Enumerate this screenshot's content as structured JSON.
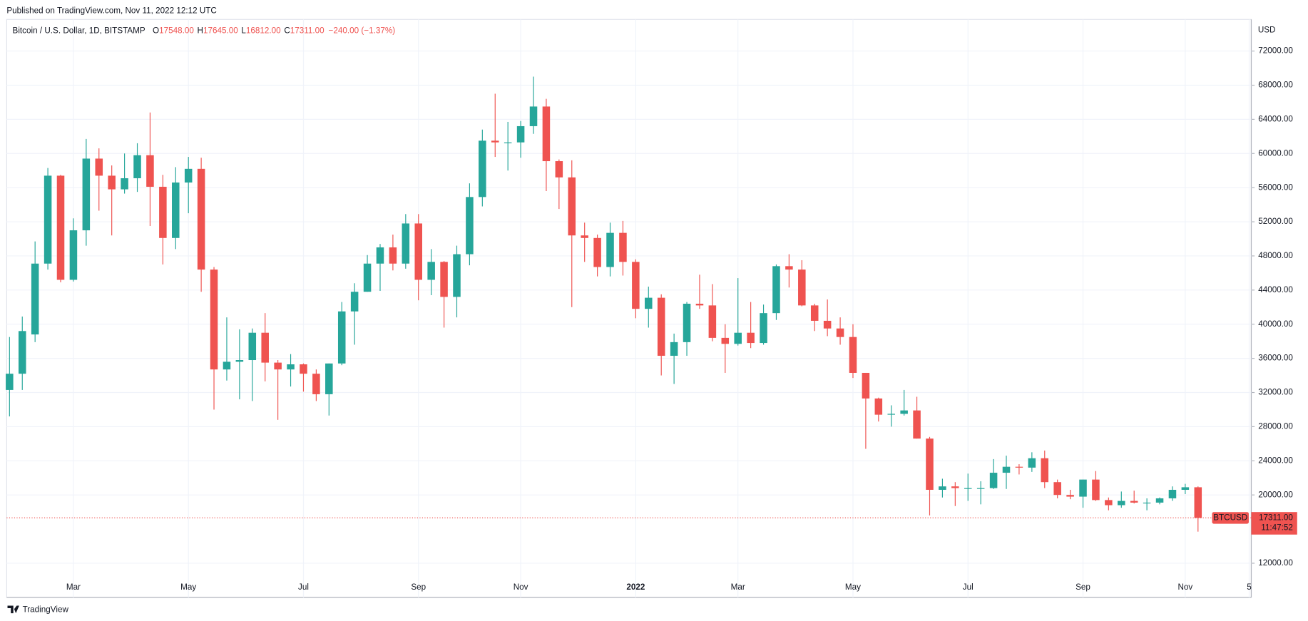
{
  "published": "Published on TradingView.com, Nov 11, 2022 12:12 UTC",
  "footer": "TradingView",
  "chart_data": {
    "type": "candlestick",
    "title": "Bitcoin / U.S. Dollar, 1D, BITSTAMP",
    "ohlc_header": [
      {
        "label": "O",
        "value": "17548.00"
      },
      {
        "label": "H",
        "value": "17645.00"
      },
      {
        "label": "L",
        "value": "16812.00"
      },
      {
        "label": "C",
        "value": "17311.00"
      }
    ],
    "change": "−240.00 (−1.37%)",
    "currency": "USD",
    "symbol": "BTCUSD",
    "last_price": {
      "value": 17311,
      "label": "17311.00"
    },
    "countdown": "11:47:52",
    "up_color": "#26a69a",
    "down_color": "#ef5350",
    "grid": true,
    "categories": [
      null,
      null,
      null,
      null,
      null,
      "Mar",
      null,
      null,
      null,
      null,
      null,
      null,
      null,
      null,
      "May",
      null,
      null,
      null,
      null,
      null,
      null,
      null,
      null,
      "Jul",
      null,
      null,
      null,
      null,
      null,
      null,
      null,
      null,
      "Sep",
      null,
      null,
      null,
      null,
      null,
      null,
      null,
      "Nov",
      null,
      null,
      null,
      null,
      null,
      null,
      null,
      null,
      "2022",
      null,
      null,
      null,
      null,
      null,
      null,
      null,
      "Mar",
      null,
      null,
      null,
      null,
      null,
      null,
      null,
      null,
      "May",
      null,
      null,
      null,
      null,
      null,
      null,
      null,
      null,
      "Jul",
      null,
      null,
      null,
      null,
      null,
      null,
      null,
      null,
      "Sep",
      null,
      null,
      null,
      null,
      null,
      null,
      null,
      "Nov",
      null,
      null,
      null,
      null,
      "5"
    ],
    "open": [
      32300,
      34200,
      38800,
      47100,
      57400,
      45200,
      51000,
      59400,
      57400,
      55800,
      57100,
      59800,
      56100,
      50100,
      56600,
      58200,
      46400,
      34700,
      35600,
      35800,
      39000,
      35500,
      34700,
      35300,
      34200,
      31800,
      35400,
      41500,
      43800,
      47100,
      49000,
      47100,
      51800,
      45200,
      47300,
      43200,
      48200,
      54900,
      61500,
      61300,
      61300,
      63200,
      65500,
      59100,
      57200,
      50400,
      50100,
      46700,
      50700,
      47300,
      41800,
      43100,
      36300,
      37900,
      42400,
      42200,
      38400,
      37700,
      39000,
      37800,
      41300,
      46800,
      46400,
      42200,
      40400,
      39500,
      38500,
      34300,
      31300,
      29400,
      29500,
      29900,
      26600,
      20600,
      21000,
      20800,
      20800,
      20800,
      22600,
      23300,
      23200,
      24300,
      21500,
      20000,
      19800,
      21800,
      19400,
      18800,
      19300,
      19100,
      19100,
      19600,
      20600,
      20900,
      null,
      null,
      null,
      null
    ],
    "high": [
      38500,
      40900,
      49700,
      58300,
      57500,
      52400,
      61700,
      60600,
      58600,
      60000,
      61200,
      64800,
      57500,
      58400,
      59600,
      59500,
      46700,
      40800,
      39400,
      39500,
      41300,
      35800,
      36500,
      35400,
      34700,
      35400,
      42600,
      44800,
      48100,
      49400,
      50500,
      52900,
      52900,
      48800,
      47400,
      49200,
      56500,
      62800,
      67000,
      63700,
      63800,
      69000,
      66400,
      59300,
      59200,
      51900,
      50500,
      51900,
      52100,
      47600,
      44400,
      43500,
      38900,
      42600,
      45800,
      44700,
      40000,
      45400,
      42600,
      42300,
      47000,
      48200,
      47500,
      42400,
      42900,
      40800,
      40000,
      34300,
      31400,
      30500,
      32300,
      31500,
      26800,
      21900,
      21500,
      22500,
      21600,
      24200,
      24600,
      23600,
      25000,
      25200,
      21800,
      20600,
      21800,
      22800,
      19700,
      20400,
      20500,
      19600,
      19700,
      21000,
      21300,
      21000,
      null,
      null,
      null,
      null
    ],
    "low": [
      29200,
      32300,
      37900,
      46400,
      44900,
      45000,
      49200,
      53300,
      50400,
      55300,
      55500,
      51500,
      47000,
      48800,
      53000,
      43800,
      30000,
      33400,
      31200,
      31000,
      33300,
      28800,
      32700,
      32100,
      31000,
      29300,
      35200,
      37600,
      43800,
      43900,
      46300,
      46500,
      42800,
      43400,
      39600,
      40800,
      46900,
      53800,
      59600,
      58000,
      59500,
      62300,
      55600,
      53500,
      42000,
      47300,
      45600,
      45600,
      45700,
      40700,
      39600,
      34000,
      33000,
      36300,
      41800,
      38000,
      34300,
      37500,
      37200,
      37600,
      40500,
      44300,
      42100,
      39200,
      38600,
      37600,
      33700,
      25400,
      28600,
      28000,
      29300,
      26600,
      17600,
      19700,
      18700,
      19300,
      18900,
      20700,
      20700,
      22400,
      22700,
      20800,
      19600,
      19500,
      18500,
      19300,
      18200,
      18500,
      19000,
      18200,
      18900,
      19300,
      20100,
      15700,
      null,
      null,
      null,
      null
    ],
    "close": [
      34200,
      39200,
      47100,
      57400,
      45200,
      51000,
      59400,
      57400,
      55800,
      57100,
      59800,
      56100,
      50100,
      56600,
      58200,
      46400,
      34700,
      35600,
      35800,
      39000,
      35500,
      34700,
      35300,
      34200,
      31800,
      35400,
      41500,
      43800,
      47100,
      49000,
      47100,
      51800,
      45200,
      47300,
      43200,
      48200,
      54900,
      61500,
      61300,
      61300,
      63200,
      65500,
      59100,
      57200,
      50400,
      50100,
      46700,
      50700,
      47300,
      41800,
      43100,
      36300,
      37900,
      42400,
      42200,
      38400,
      37700,
      39000,
      37800,
      41300,
      46800,
      46400,
      42200,
      40400,
      39500,
      38500,
      34300,
      31300,
      29400,
      29500,
      29900,
      26600,
      20600,
      21000,
      20800,
      20800,
      20800,
      22600,
      23300,
      23200,
      24300,
      21500,
      20000,
      19800,
      21800,
      19400,
      18800,
      19300,
      19100,
      19100,
      19600,
      20600,
      20900,
      17311,
      null,
      null,
      null,
      null
    ],
    "ylim": [
      8000,
      75700
    ],
    "yticks": [
      {
        "value": 12000,
        "label": "12000.00"
      },
      {
        "value": 20000,
        "label": "20000.00"
      },
      {
        "value": 24000,
        "label": "24000.00"
      },
      {
        "value": 28000,
        "label": "28000.00"
      },
      {
        "value": 32000,
        "label": "32000.00"
      },
      {
        "value": 36000,
        "label": "36000.00"
      },
      {
        "value": 40000,
        "label": "40000.00"
      },
      {
        "value": 44000,
        "label": "44000.00"
      },
      {
        "value": 48000,
        "label": "48000.00"
      },
      {
        "value": 52000,
        "label": "52000.00"
      },
      {
        "value": 56000,
        "label": "56000.00"
      },
      {
        "value": 60000,
        "label": "60000.00"
      },
      {
        "value": 64000,
        "label": "64000.00"
      },
      {
        "value": 68000,
        "label": "68000.00"
      },
      {
        "value": 72000,
        "label": "72000.00"
      }
    ]
  }
}
